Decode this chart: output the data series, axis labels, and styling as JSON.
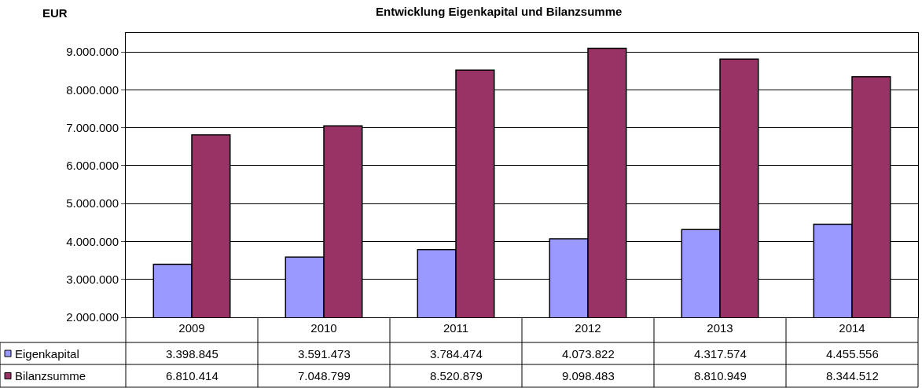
{
  "chart_data": {
    "type": "bar",
    "title": "Entwicklung Eigenkapital und Bilanzsumme",
    "ylabel": "EUR",
    "categories": [
      "2009",
      "2010",
      "2011",
      "2012",
      "2013",
      "2014"
    ],
    "series": [
      {
        "name": "Eigenkapital",
        "color": "#9999ff",
        "values": [
          3398845,
          3591473,
          3784474,
          4073822,
          4317574,
          4455556
        ],
        "value_labels": [
          "3.398.845",
          "3.591.473",
          "3.784.474",
          "4.073.822",
          "4.317.574",
          "4.455.556"
        ]
      },
      {
        "name": "Bilanzsumme",
        "color": "#993366",
        "values": [
          6810414,
          7048799,
          8520879,
          9098483,
          8810949,
          8344512
        ],
        "value_labels": [
          "6.810.414",
          "7.048.799",
          "8.520.879",
          "9.098.483",
          "8.810.949",
          "8.344.512"
        ]
      }
    ],
    "ylim": [
      2000000,
      9500000
    ],
    "yticks": [
      {
        "value": 2000000,
        "label": "2.000.000"
      },
      {
        "value": 3000000,
        "label": "3.000.000"
      },
      {
        "value": 4000000,
        "label": "4.000.000"
      },
      {
        "value": 5000000,
        "label": "5.000.000"
      },
      {
        "value": 6000000,
        "label": "6.000.000"
      },
      {
        "value": 7000000,
        "label": "7.000.000"
      },
      {
        "value": 8000000,
        "label": "8.000.000"
      },
      {
        "value": 9000000,
        "label": "9.000.000"
      }
    ],
    "grid": "y",
    "legend": "bottom left"
  }
}
